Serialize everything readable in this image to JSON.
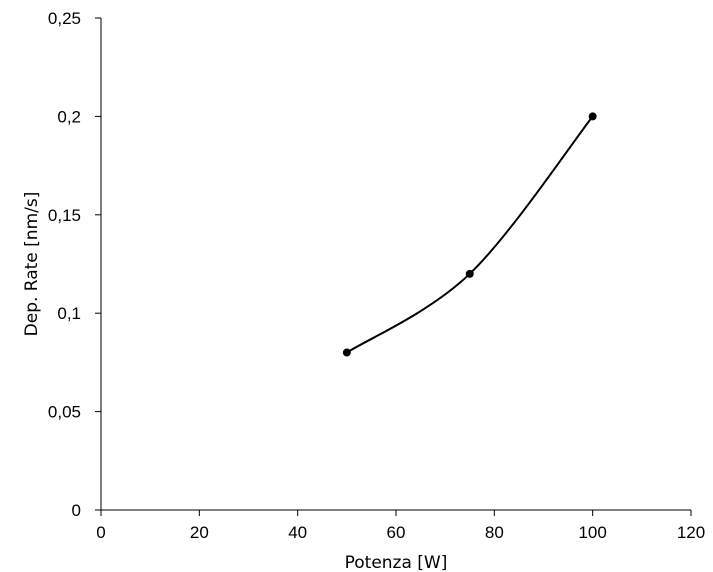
{
  "chart_data": {
    "type": "line",
    "title": "",
    "xlabel": "Potenza [W]",
    "ylabel": "Dep. Rate [nm/s]",
    "xlim": [
      0,
      120
    ],
    "ylim": [
      0,
      0.25
    ],
    "x_ticks": [
      0,
      20,
      40,
      60,
      80,
      100,
      120
    ],
    "x_tick_labels": [
      "0",
      "20",
      "40",
      "60",
      "80",
      "100",
      "120"
    ],
    "y_ticks": [
      0,
      0.05,
      0.1,
      0.15,
      0.2,
      0.25
    ],
    "y_tick_labels": [
      "0",
      "0,05",
      "0,1",
      "0,15",
      "0,2",
      "0,25"
    ],
    "grid": false,
    "legend": "none",
    "smooth": true,
    "series": [
      {
        "color": "#000000",
        "marker": "circle",
        "x": [
          50,
          75,
          100
        ],
        "y": [
          0.08,
          0.12,
          0.2
        ]
      }
    ]
  }
}
